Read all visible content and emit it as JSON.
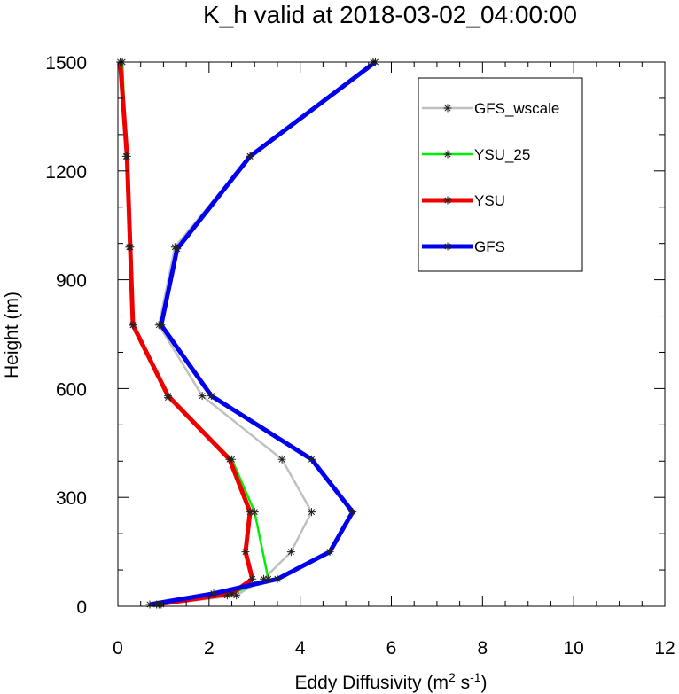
{
  "chart_data": {
    "type": "line",
    "title": "K_h valid at 2018-03-02_04:00:00",
    "xlabel": "Eddy Diffusivity (m",
    "xlabel_sup1": "2",
    "xlabel_mid": " s",
    "xlabel_sup2": "-1",
    "xlabel_end": ")",
    "ylabel": "Height (m)",
    "xlim": [
      0,
      12
    ],
    "ylim": [
      0,
      1500
    ],
    "xticks": [
      0,
      2,
      4,
      6,
      8,
      10,
      12
    ],
    "xtick_labels": [
      "0",
      "2",
      "4",
      "6",
      "8",
      "10",
      "12"
    ],
    "yticks": [
      0,
      300,
      600,
      900,
      1200,
      1500
    ],
    "ytick_labels": [
      "0",
      "300",
      "600",
      "900",
      "1200",
      "1500"
    ],
    "grid": false,
    "legend_position": "top-right",
    "series": [
      {
        "name": "GFS_wscale",
        "color": "#c0c0c0",
        "marker": "asterisk",
        "points": [
          {
            "x": 0.95,
            "y": 5
          },
          {
            "x": 2.6,
            "y": 30
          },
          {
            "x": 3.2,
            "y": 75
          },
          {
            "x": 3.8,
            "y": 150
          },
          {
            "x": 4.25,
            "y": 260
          },
          {
            "x": 3.6,
            "y": 405
          },
          {
            "x": 1.85,
            "y": 580
          },
          {
            "x": 0.9,
            "y": 775
          },
          {
            "x": 1.25,
            "y": 990
          },
          {
            "x": 2.9,
            "y": 1240
          },
          {
            "x": 5.6,
            "y": 1500
          }
        ]
      },
      {
        "name": "YSU_25",
        "color": "#00ee00",
        "marker": "asterisk",
        "points": [
          {
            "x": 0.9,
            "y": 5
          },
          {
            "x": 2.4,
            "y": 30
          },
          {
            "x": 3.3,
            "y": 75
          },
          {
            "x": 3.0,
            "y": 260
          },
          {
            "x": 2.5,
            "y": 405
          },
          {
            "x": 1.1,
            "y": 575
          },
          {
            "x": 0.33,
            "y": 775
          },
          {
            "x": 0.25,
            "y": 990
          },
          {
            "x": 0.18,
            "y": 1240
          },
          {
            "x": 0.1,
            "y": 1500
          }
        ]
      },
      {
        "name": "YSU",
        "color": "#ee0000",
        "marker": "asterisk",
        "points": [
          {
            "x": 0.85,
            "y": 5
          },
          {
            "x": 2.5,
            "y": 35
          },
          {
            "x": 2.95,
            "y": 75
          },
          {
            "x": 2.8,
            "y": 150
          },
          {
            "x": 2.9,
            "y": 260
          },
          {
            "x": 2.45,
            "y": 405
          },
          {
            "x": 1.1,
            "y": 580
          },
          {
            "x": 0.33,
            "y": 775
          },
          {
            "x": 0.27,
            "y": 990
          },
          {
            "x": 0.2,
            "y": 1240
          },
          {
            "x": 0.05,
            "y": 1500
          }
        ]
      },
      {
        "name": "GFS",
        "color": "#0000ee",
        "marker": "asterisk",
        "points": [
          {
            "x": 0.7,
            "y": 5
          },
          {
            "x": 2.1,
            "y": 35
          },
          {
            "x": 3.5,
            "y": 75
          },
          {
            "x": 4.65,
            "y": 150
          },
          {
            "x": 5.15,
            "y": 260
          },
          {
            "x": 4.25,
            "y": 405
          },
          {
            "x": 2.05,
            "y": 580
          },
          {
            "x": 0.95,
            "y": 775
          },
          {
            "x": 1.3,
            "y": 985
          },
          {
            "x": 2.9,
            "y": 1240
          },
          {
            "x": 5.65,
            "y": 1500
          }
        ]
      }
    ]
  }
}
